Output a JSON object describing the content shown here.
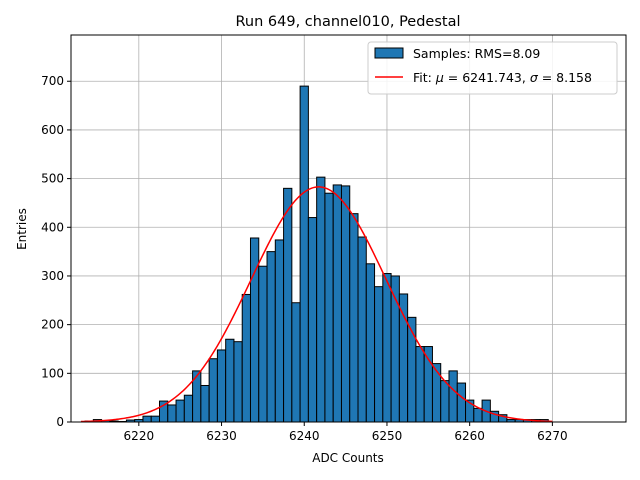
{
  "chart_data": {
    "type": "bar",
    "title": "Run 649, channel010, Pedestal",
    "xlabel": "ADC Counts",
    "ylabel": "Entries",
    "xlim": [
      6211.8,
      6278.9
    ],
    "ylim": [
      0,
      795
    ],
    "xticks": [
      6220,
      6230,
      6240,
      6250,
      6260,
      6270
    ],
    "yticks": [
      0,
      100,
      200,
      300,
      400,
      500,
      600,
      700
    ],
    "grid": true,
    "legend_position": "top-right",
    "bin_width": 1,
    "bins": [
      [
        6214,
        2
      ],
      [
        6215,
        5
      ],
      [
        6216,
        3
      ],
      [
        6217,
        2
      ],
      [
        6218,
        1
      ],
      [
        6219,
        4
      ],
      [
        6220,
        5
      ],
      [
        6221,
        12
      ],
      [
        6222,
        12
      ],
      [
        6223,
        43
      ],
      [
        6224,
        35
      ],
      [
        6225,
        45
      ],
      [
        6226,
        55
      ],
      [
        6227,
        105
      ],
      [
        6228,
        75
      ],
      [
        6229,
        130
      ],
      [
        6230,
        148
      ],
      [
        6231,
        170
      ],
      [
        6232,
        165
      ],
      [
        6233,
        262
      ],
      [
        6234,
        378
      ],
      [
        6235,
        320
      ],
      [
        6236,
        350
      ],
      [
        6237,
        374
      ],
      [
        6238,
        480
      ],
      [
        6239,
        245
      ],
      [
        6240,
        690
      ],
      [
        6241,
        420
      ],
      [
        6242,
        503
      ],
      [
        6243,
        470
      ],
      [
        6244,
        487
      ],
      [
        6245,
        485
      ],
      [
        6246,
        428
      ],
      [
        6247,
        380
      ],
      [
        6248,
        325
      ],
      [
        6249,
        278
      ],
      [
        6250,
        305
      ],
      [
        6251,
        300
      ],
      [
        6252,
        263
      ],
      [
        6253,
        215
      ],
      [
        6254,
        155
      ],
      [
        6255,
        155
      ],
      [
        6256,
        120
      ],
      [
        6257,
        85
      ],
      [
        6258,
        105
      ],
      [
        6259,
        80
      ],
      [
        6260,
        45
      ],
      [
        6261,
        28
      ],
      [
        6262,
        45
      ],
      [
        6263,
        22
      ],
      [
        6264,
        15
      ],
      [
        6265,
        5
      ],
      [
        6266,
        5
      ],
      [
        6267,
        5
      ],
      [
        6268,
        5
      ],
      [
        6269,
        5
      ]
    ],
    "fit": {
      "mu": 6241.743,
      "sigma": 8.158,
      "amplitude": 483,
      "x_range": [
        6213,
        6270
      ]
    },
    "series": [
      {
        "name": "Samples: RMS=8.09",
        "kind": "histogram"
      },
      {
        "name_prefix": "Fit: ",
        "name_mu": "μ",
        "name_mid": " = 6241.743, ",
        "name_sigma": "σ",
        "name_suffix": " = 8.158",
        "kind": "line"
      }
    ],
    "colors": {
      "bar_fill": "#1f77b4",
      "bar_edge": "#000000",
      "fit_line": "#ff0000",
      "grid": "#b0b0b0"
    }
  }
}
